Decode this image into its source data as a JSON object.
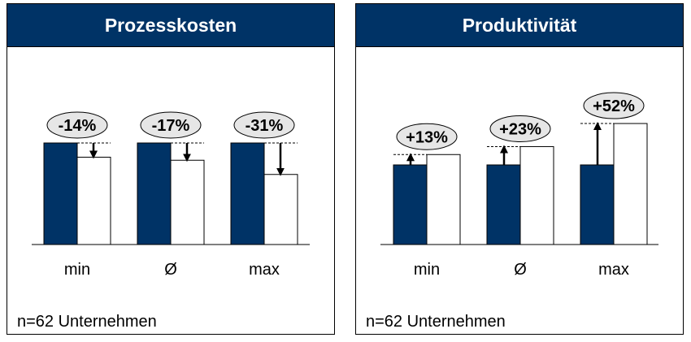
{
  "chart_data": [
    {
      "type": "bar",
      "title": "Prozesskosten",
      "categories": [
        "min",
        "Ø",
        "max"
      ],
      "series": [
        {
          "values": [
            100,
            100,
            100
          ]
        },
        {
          "values": [
            86,
            83,
            69
          ]
        }
      ],
      "change_labels": [
        "-14%",
        "-17%",
        "-31%"
      ],
      "ylim": [
        0,
        160
      ],
      "footnote": "n=62 Unternehmen",
      "colors": {
        "baseline": "#003366",
        "comparison": "#ffffff"
      }
    },
    {
      "type": "bar",
      "title": "Produktivität",
      "categories": [
        "min",
        "Ø",
        "max"
      ],
      "series": [
        {
          "values": [
            100,
            100,
            100
          ]
        },
        {
          "values": [
            113,
            123,
            152
          ]
        }
      ],
      "change_labels": [
        "+13%",
        "+23%",
        "+52%"
      ],
      "ylim": [
        0,
        200
      ],
      "footnote": "n=62 Unternehmen",
      "colors": {
        "baseline": "#003366",
        "comparison": "#ffffff"
      }
    }
  ]
}
